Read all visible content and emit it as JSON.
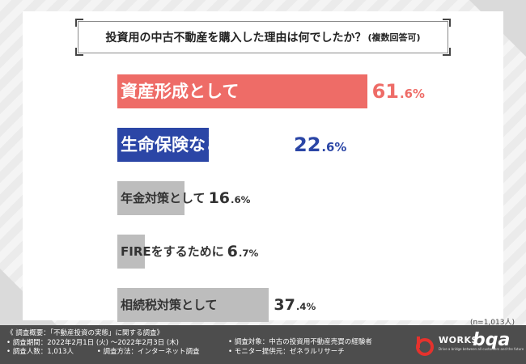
{
  "title": {
    "main": "投資用の中古不動産を購入した理由は何でしたか？",
    "sub": "(複数回答可)"
  },
  "chart_data": {
    "type": "bar",
    "orientation": "horizontal",
    "categories": [
      "資産形成として",
      "生命保険などの代わり",
      "年金対策として",
      "FIREをするために",
      "相続税対策として"
    ],
    "values": [
      61.6,
      22.6,
      16.6,
      6.7,
      37.4
    ],
    "value_labels": [
      {
        "num": "61",
        "dec": ".6%"
      },
      {
        "num": "22",
        "dec": ".6%"
      },
      {
        "num": "16",
        "dec": ".6%"
      },
      {
        "num": "6",
        "dec": ".7%"
      },
      {
        "num": "37",
        "dec": ".4%"
      }
    ],
    "bar_colors": [
      "#ee6c67",
      "#2b46a6",
      "#bdbdbd",
      "#bdbdbd",
      "#bdbdbd"
    ],
    "label_colors": [
      "#ffffff",
      "#ffffff",
      "#333333",
      "#333333",
      "#333333"
    ],
    "value_colors": [
      "#ee6c67",
      "#2b46a6",
      "#333333",
      "#333333",
      "#333333"
    ],
    "title": "",
    "xlabel": "",
    "ylabel": "",
    "xlim": [
      0,
      100
    ],
    "grid": false
  },
  "sample_size": "(n=1,013人)",
  "footer": {
    "overview": "《 調査概要：「不動産投資の実態」に関する調査》",
    "period": "• 調査期間：2022年2月1日 (火) ～2022年2月3日 (木)",
    "people": "• 調査人数：1,013人",
    "method": "• 調査方法：インターネット調査",
    "target": "• 調査対象：中古の投資用不動産売買の経験者",
    "provider": "• モニター提供元：ゼネラルリサーチ"
  },
  "logo": {
    "works": "WORKS",
    "bqa": "bqa",
    "tagline": "Drive a bridge between all customers and the future"
  }
}
